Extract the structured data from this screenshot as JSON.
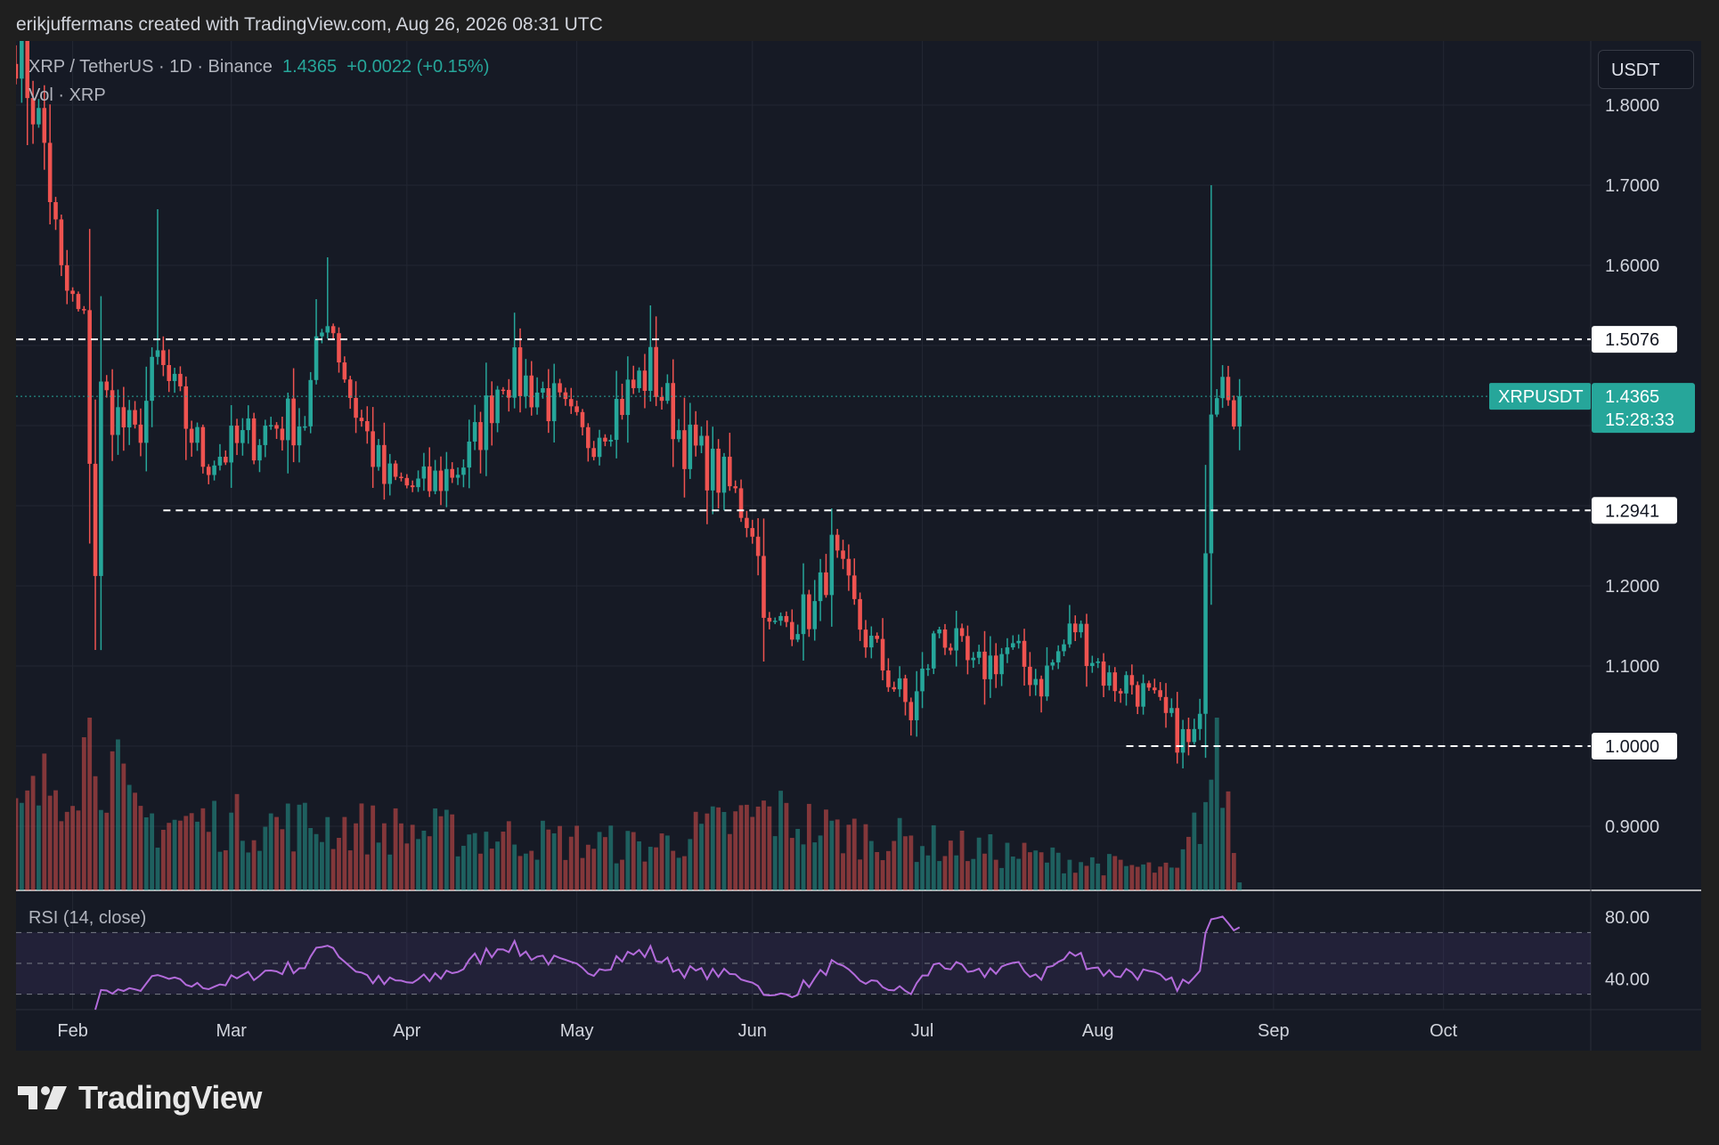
{
  "header": {
    "attribution": "erikjuffermans created with TradingView.com, Aug 26, 2026 08:31 UTC"
  },
  "legend": {
    "symbol": "XRP / TetherUS · 1D · Binance",
    "last": "1.4365",
    "change": "+0.0022 (+0.15%)",
    "volume_label": "Vol · XRP"
  },
  "currency_button": "USDT",
  "rsi_label": "RSI (14, close)",
  "logo": {
    "name": "TradingView"
  },
  "colors": {
    "up": "#26a69a",
    "down": "#ef5350",
    "background": "#161a25",
    "rsi": "#b36bdb",
    "badge": "#26a69a"
  },
  "chart_data": {
    "type": "candlestick",
    "symbol": "XRPUSDT",
    "price_axis": {
      "ticks": [
        0.9,
        1.0,
        1.1,
        1.2,
        1.3,
        1.4,
        1.5,
        1.6,
        1.7,
        1.8
      ],
      "tick_labels": [
        "0.9000",
        "1.0000",
        "1.1000",
        "1.2000",
        "1.3000",
        "1.4000",
        "1.5000",
        "1.6000",
        "1.7000",
        "1.8000"
      ],
      "range": [
        0.82,
        1.88
      ]
    },
    "time_axis": {
      "labels": [
        "Feb",
        "Mar",
        "Apr",
        "May",
        "Jun",
        "Jul",
        "Aug",
        "Sep",
        "Oct"
      ],
      "range": [
        "2026-01-22",
        "2026-10-27"
      ]
    },
    "horizontal_levels": [
      {
        "value": 1.5076,
        "label": "1.5076",
        "from": "2026-01-22"
      },
      {
        "value": 1.2941,
        "label": "1.2941",
        "from": "2026-02-17"
      },
      {
        "value": 1.0,
        "label": "1.0000",
        "from": "2026-08-06"
      }
    ],
    "last_price": {
      "symbol": "XRPUSDT",
      "value": 1.4365,
      "label": "1.4365",
      "countdown": "15:28:33"
    },
    "price_anchors": [
      [
        "2026-01-22",
        1.88
      ],
      [
        "2026-01-27",
        1.75
      ],
      [
        "2026-01-30",
        1.58
      ],
      [
        "2026-02-03",
        1.52
      ],
      [
        "2026-02-05",
        1.22
      ],
      [
        "2026-02-06",
        1.44
      ],
      [
        "2026-02-12",
        1.38
      ],
      [
        "2026-02-16",
        1.48
      ],
      [
        "2026-02-24",
        1.36
      ],
      [
        "2026-03-01",
        1.37
      ],
      [
        "2026-03-08",
        1.4
      ],
      [
        "2026-03-14",
        1.41
      ],
      [
        "2026-03-18",
        1.55
      ],
      [
        "2026-03-22",
        1.44
      ],
      [
        "2026-03-28",
        1.33
      ],
      [
        "2026-04-04",
        1.32
      ],
      [
        "2026-04-12",
        1.36
      ],
      [
        "2026-04-18",
        1.47
      ],
      [
        "2026-04-25",
        1.44
      ],
      [
        "2026-05-02",
        1.38
      ],
      [
        "2026-05-10",
        1.44
      ],
      [
        "2026-05-14",
        1.47
      ],
      [
        "2026-05-20",
        1.38
      ],
      [
        "2026-05-27",
        1.33
      ],
      [
        "2026-06-01",
        1.28
      ],
      [
        "2026-06-04",
        1.14
      ],
      [
        "2026-06-08",
        1.16
      ],
      [
        "2026-06-12",
        1.17
      ],
      [
        "2026-06-15",
        1.24
      ],
      [
        "2026-06-20",
        1.15
      ],
      [
        "2026-06-24",
        1.1
      ],
      [
        "2026-06-29",
        1.04
      ],
      [
        "2026-07-04",
        1.15
      ],
      [
        "2026-07-10",
        1.09
      ],
      [
        "2026-07-16",
        1.12
      ],
      [
        "2026-07-22",
        1.08
      ],
      [
        "2026-07-28",
        1.15
      ],
      [
        "2026-08-03",
        1.08
      ],
      [
        "2026-08-07",
        1.08
      ],
      [
        "2026-08-12",
        1.04
      ],
      [
        "2026-08-17",
        1.0
      ],
      [
        "2026-08-19",
        1.02
      ],
      [
        "2026-08-20",
        1.27
      ],
      [
        "2026-08-21",
        1.44
      ],
      [
        "2026-08-23",
        1.49
      ],
      [
        "2026-08-25",
        1.434
      ],
      [
        "2026-08-26",
        1.4365
      ]
    ],
    "volume_relative": [
      [
        "2026-01-22",
        0.45
      ],
      [
        "2026-02-05",
        1.0
      ],
      [
        "2026-02-12",
        0.45
      ],
      [
        "2026-03-18",
        0.42
      ],
      [
        "2026-05-14",
        0.28
      ],
      [
        "2026-06-04",
        0.5
      ],
      [
        "2026-06-15",
        0.38
      ],
      [
        "2026-07-20",
        0.22
      ],
      [
        "2026-08-15",
        0.12
      ],
      [
        "2026-08-20",
        0.55
      ],
      [
        "2026-08-22",
        1.0
      ],
      [
        "2026-08-26",
        0.05
      ]
    ],
    "rsi": {
      "axis_ticks": [
        40,
        80
      ],
      "tick_labels": [
        "40.00",
        "80.00"
      ],
      "upper_band": 70,
      "lower_band": 30,
      "last_reading": 72
    }
  }
}
